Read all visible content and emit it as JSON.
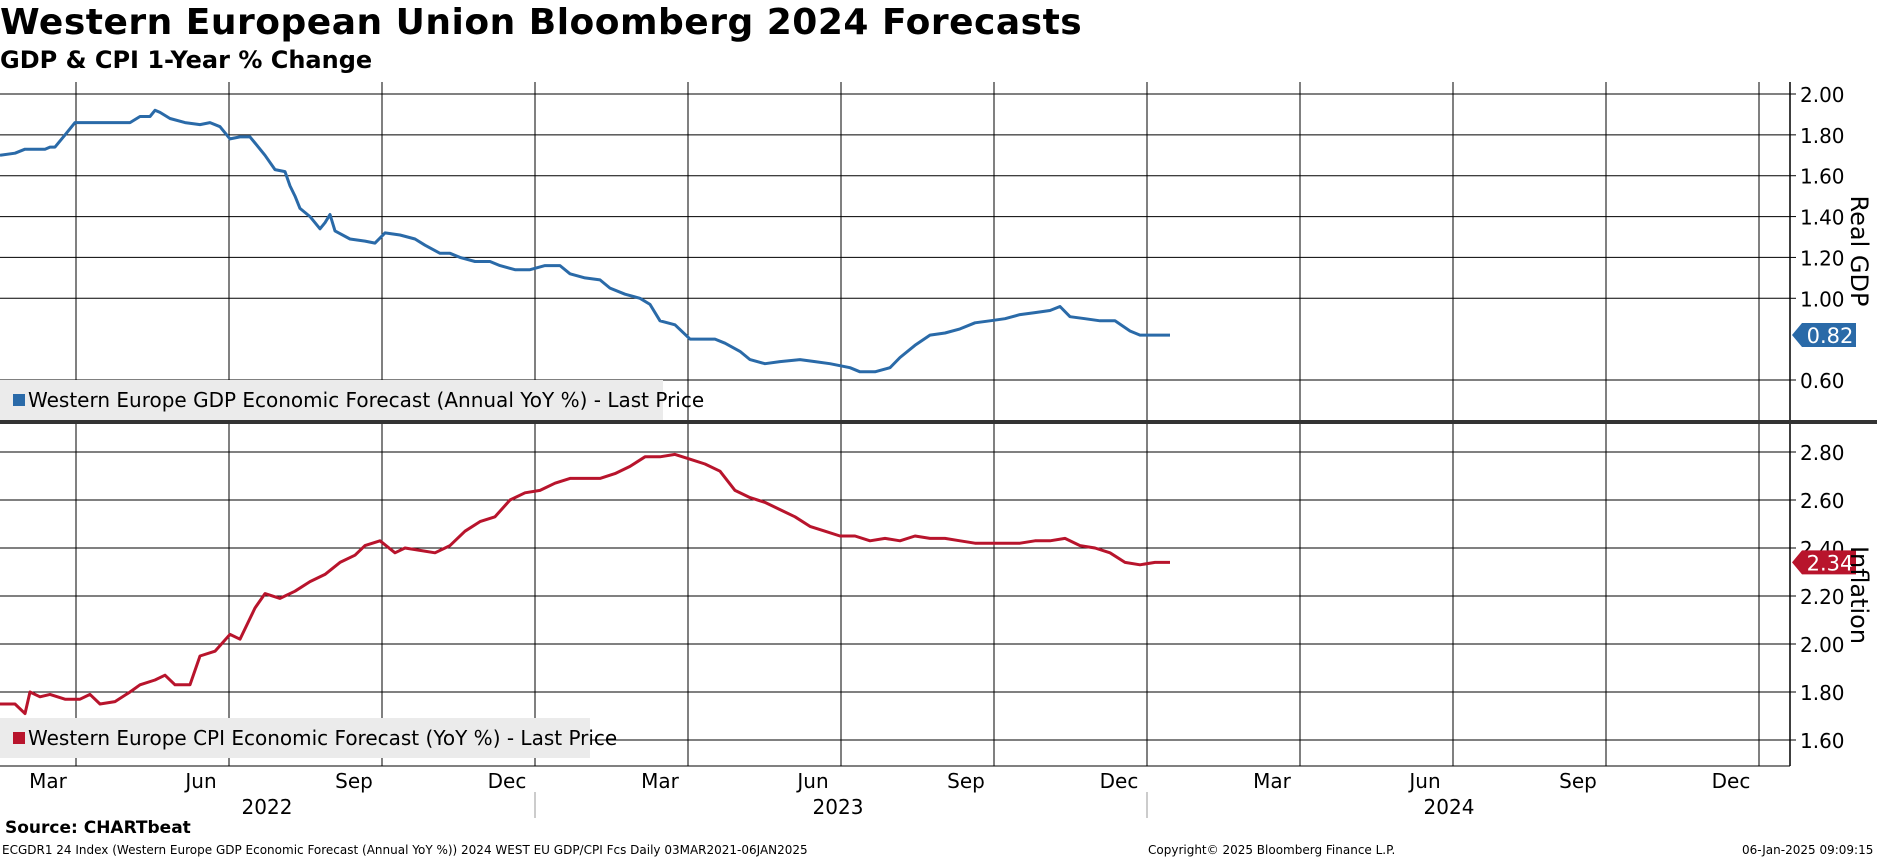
{
  "header": {
    "title": "Western European Union Bloomberg 2024 Forecasts",
    "subtitle": "GDP & CPI 1-Year % Change"
  },
  "footer": {
    "source": "Source: CHARTbeat",
    "ticker_line": "ECGDR1 24 Index (Western Europe GDP Economic Forecast (Annual YoY %)) 2024 WEST EU GDP/CPI Fcs  Daily 03MAR2021-06JAN2025",
    "copyright": "Copyright© 2025 Bloomberg Finance L.P.",
    "timestamp": "06-Jan-2025 09:09:15"
  },
  "colors": {
    "gdp": "#2a6aa8",
    "cpi": "#b8142c",
    "grid": "#000000",
    "legend_bg": "#ebebeb"
  },
  "chart_data": [
    {
      "type": "line",
      "panel": "top",
      "ylabel": "Real GDP",
      "ylim": [
        0.44,
        2.06
      ],
      "yticks": [
        2.0,
        1.8,
        1.6,
        1.4,
        1.2,
        1.0,
        0.6
      ],
      "ytick_labels": [
        "2.00",
        "1.80",
        "1.60",
        "1.40",
        "1.20",
        "1.00",
        "0.60"
      ],
      "series": [
        {
          "name": "Western Europe GDP Economic Forecast (Annual YoY %) - Last Price",
          "last_value": "0.82",
          "points": [
            [
              0,
              1.7
            ],
            [
              0.3,
              1.71
            ],
            [
              0.5,
              1.73
            ],
            [
              0.9,
              1.73
            ],
            [
              1.0,
              1.74
            ],
            [
              1.1,
              1.74
            ],
            [
              1.3,
              1.8
            ],
            [
              1.5,
              1.86
            ],
            [
              1.9,
              1.86
            ],
            [
              2.3,
              1.86
            ],
            [
              2.6,
              1.86
            ],
            [
              2.8,
              1.89
            ],
            [
              3.0,
              1.89
            ],
            [
              3.1,
              1.92
            ],
            [
              3.2,
              1.91
            ],
            [
              3.4,
              1.88
            ],
            [
              3.7,
              1.86
            ],
            [
              4.0,
              1.85
            ],
            [
              4.2,
              1.86
            ],
            [
              4.4,
              1.84
            ],
            [
              4.6,
              1.78
            ],
            [
              4.8,
              1.79
            ],
            [
              5.0,
              1.79
            ],
            [
              5.1,
              1.76
            ],
            [
              5.3,
              1.7
            ],
            [
              5.5,
              1.63
            ],
            [
              5.7,
              1.62
            ],
            [
              5.8,
              1.55
            ],
            [
              5.9,
              1.5
            ],
            [
              6.0,
              1.44
            ],
            [
              6.2,
              1.4
            ],
            [
              6.4,
              1.34
            ],
            [
              6.5,
              1.37
            ],
            [
              6.6,
              1.41
            ],
            [
              6.7,
              1.33
            ],
            [
              7.0,
              1.29
            ],
            [
              7.3,
              1.28
            ],
            [
              7.5,
              1.27
            ],
            [
              7.7,
              1.32
            ],
            [
              8.0,
              1.31
            ],
            [
              8.3,
              1.29
            ],
            [
              8.5,
              1.26
            ],
            [
              8.8,
              1.22
            ],
            [
              9.0,
              1.22
            ],
            [
              9.2,
              1.2
            ],
            [
              9.5,
              1.18
            ],
            [
              9.8,
              1.18
            ],
            [
              10.0,
              1.16
            ],
            [
              10.3,
              1.14
            ],
            [
              10.6,
              1.14
            ],
            [
              10.9,
              1.16
            ],
            [
              11.2,
              1.16
            ],
            [
              11.4,
              1.12
            ],
            [
              11.7,
              1.1
            ],
            [
              12.0,
              1.09
            ],
            [
              12.2,
              1.05
            ],
            [
              12.5,
              1.02
            ],
            [
              12.8,
              1.0
            ],
            [
              13.0,
              0.97
            ],
            [
              13.2,
              0.89
            ],
            [
              13.5,
              0.87
            ],
            [
              13.8,
              0.8
            ],
            [
              14.0,
              0.8
            ],
            [
              14.3,
              0.8
            ],
            [
              14.5,
              0.78
            ],
            [
              14.8,
              0.74
            ],
            [
              15.0,
              0.7
            ],
            [
              15.3,
              0.68
            ],
            [
              15.6,
              0.69
            ],
            [
              16.0,
              0.7
            ],
            [
              16.3,
              0.69
            ],
            [
              16.6,
              0.68
            ],
            [
              17.0,
              0.66
            ],
            [
              17.2,
              0.64
            ],
            [
              17.5,
              0.64
            ],
            [
              17.8,
              0.66
            ],
            [
              18.0,
              0.71
            ],
            [
              18.3,
              0.77
            ],
            [
              18.6,
              0.82
            ],
            [
              18.9,
              0.83
            ],
            [
              19.2,
              0.85
            ],
            [
              19.5,
              0.88
            ],
            [
              19.8,
              0.89
            ],
            [
              20.1,
              0.9
            ],
            [
              20.4,
              0.92
            ],
            [
              20.7,
              0.93
            ],
            [
              21.0,
              0.94
            ],
            [
              21.2,
              0.96
            ],
            [
              21.4,
              0.91
            ],
            [
              21.7,
              0.9
            ],
            [
              22.0,
              0.89
            ],
            [
              22.3,
              0.89
            ],
            [
              22.6,
              0.84
            ],
            [
              22.8,
              0.82
            ],
            [
              23.1,
              0.82
            ],
            [
              23.4,
              0.82
            ]
          ]
        }
      ]
    },
    {
      "type": "line",
      "panel": "bottom",
      "ylabel": "Inflation",
      "ylim": [
        1.51,
        2.91
      ],
      "yticks": [
        2.8,
        2.6,
        2.4,
        2.2,
        2.0,
        1.8,
        1.6
      ],
      "ytick_labels": [
        "2.80",
        "2.60",
        "2.40",
        "2.20",
        "2.00",
        "1.80",
        "1.60"
      ],
      "series": [
        {
          "name": "Western Europe CPI Economic Forecast (YoY %) - Last Price",
          "last_value": "2.34",
          "points": [
            [
              0,
              1.75
            ],
            [
              0.3,
              1.75
            ],
            [
              0.5,
              1.71
            ],
            [
              0.6,
              1.8
            ],
            [
              0.8,
              1.78
            ],
            [
              1.0,
              1.79
            ],
            [
              1.3,
              1.77
            ],
            [
              1.6,
              1.77
            ],
            [
              1.8,
              1.79
            ],
            [
              2.0,
              1.75
            ],
            [
              2.3,
              1.76
            ],
            [
              2.6,
              1.8
            ],
            [
              2.8,
              1.83
            ],
            [
              3.1,
              1.85
            ],
            [
              3.3,
              1.87
            ],
            [
              3.5,
              1.83
            ],
            [
              3.8,
              1.83
            ],
            [
              4.0,
              1.95
            ],
            [
              4.3,
              1.97
            ],
            [
              4.6,
              2.04
            ],
            [
              4.8,
              2.02
            ],
            [
              5.1,
              2.15
            ],
            [
              5.3,
              2.21
            ],
            [
              5.6,
              2.19
            ],
            [
              5.9,
              2.22
            ],
            [
              6.2,
              2.26
            ],
            [
              6.5,
              2.29
            ],
            [
              6.8,
              2.34
            ],
            [
              7.1,
              2.37
            ],
            [
              7.3,
              2.41
            ],
            [
              7.6,
              2.43
            ],
            [
              7.9,
              2.38
            ],
            [
              8.1,
              2.4
            ],
            [
              8.4,
              2.39
            ],
            [
              8.7,
              2.38
            ],
            [
              9.0,
              2.41
            ],
            [
              9.3,
              2.47
            ],
            [
              9.6,
              2.51
            ],
            [
              9.9,
              2.53
            ],
            [
              10.2,
              2.6
            ],
            [
              10.5,
              2.63
            ],
            [
              10.8,
              2.64
            ],
            [
              11.1,
              2.67
            ],
            [
              11.4,
              2.69
            ],
            [
              11.7,
              2.69
            ],
            [
              12.0,
              2.69
            ],
            [
              12.3,
              2.71
            ],
            [
              12.6,
              2.74
            ],
            [
              12.9,
              2.78
            ],
            [
              13.2,
              2.78
            ],
            [
              13.5,
              2.79
            ],
            [
              13.8,
              2.77
            ],
            [
              14.1,
              2.75
            ],
            [
              14.4,
              2.72
            ],
            [
              14.7,
              2.64
            ],
            [
              15.0,
              2.61
            ],
            [
              15.3,
              2.59
            ],
            [
              15.6,
              2.56
            ],
            [
              15.9,
              2.53
            ],
            [
              16.2,
              2.49
            ],
            [
              16.5,
              2.47
            ],
            [
              16.8,
              2.45
            ],
            [
              17.1,
              2.45
            ],
            [
              17.4,
              2.43
            ],
            [
              17.7,
              2.44
            ],
            [
              18.0,
              2.43
            ],
            [
              18.3,
              2.45
            ],
            [
              18.6,
              2.44
            ],
            [
              18.9,
              2.44
            ],
            [
              19.2,
              2.43
            ],
            [
              19.5,
              2.42
            ],
            [
              19.8,
              2.42
            ],
            [
              20.1,
              2.42
            ],
            [
              20.4,
              2.42
            ],
            [
              20.7,
              2.43
            ],
            [
              21.0,
              2.43
            ],
            [
              21.3,
              2.44
            ],
            [
              21.6,
              2.41
            ],
            [
              21.9,
              2.4
            ],
            [
              22.2,
              2.38
            ],
            [
              22.5,
              2.34
            ],
            [
              22.8,
              2.33
            ],
            [
              23.1,
              2.34
            ],
            [
              23.4,
              2.34
            ]
          ]
        }
      ]
    }
  ],
  "x_axis": {
    "month_labels": [
      "Mar",
      "Jun",
      "Sep",
      "Dec",
      "Mar",
      "Jun",
      "Sep",
      "Dec",
      "Mar",
      "Jun",
      "Sep",
      "Dec"
    ],
    "month_positions": [
      0.6,
      3.6,
      6.6,
      9.6,
      12.6,
      15.6,
      18.6,
      21.6,
      24.6,
      27.6,
      30.6,
      33.6
    ],
    "year_labels": [
      "2022",
      "2023",
      "2024"
    ],
    "year_positions": [
      5.1,
      17.1,
      29.1
    ],
    "range_months": [
      0,
      35.4
    ]
  }
}
